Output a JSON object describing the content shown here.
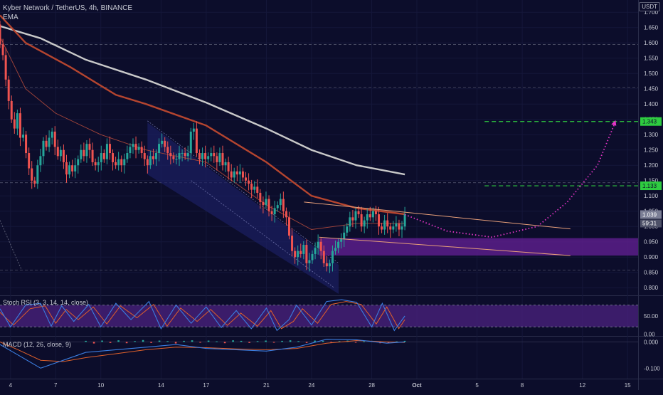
{
  "header": {
    "symbol": "Kyber Network / TetherUS, 4h, BINANCE",
    "indicator": "EMA",
    "currency": "USDT"
  },
  "colors": {
    "background": "#0c0d2b",
    "up_candle": "#26a69a",
    "down_candle": "#ef5350",
    "ema_slow": "#c9c9c9",
    "ema_mid": "#b5452f",
    "ema_fast": "#a4453a",
    "channel_fill": "#1b1f63",
    "support_zone": "#5a1e8a",
    "target_line": "#2ecc40",
    "projection": "#e535c8",
    "trendline": "#e8a07a",
    "stoch_k": "#3b7de0",
    "stoch_d": "#e0602a",
    "stoch_band": "#4b2180"
  },
  "chart_data": [
    {
      "type": "line",
      "pane": "price",
      "title": "Kyber Network / TetherUS, 4h, BINANCE",
      "x_tick_labels": [
        "4",
        "7",
        "10",
        "14",
        "17",
        "21",
        "24",
        "28",
        "Oct",
        "5",
        "8",
        "12",
        "15"
      ],
      "x_tick_days": [
        4,
        7,
        10,
        14,
        17,
        21,
        24,
        28,
        31,
        35,
        38,
        42,
        45
      ],
      "y_ticks": [
        1.7,
        1.65,
        1.6,
        1.55,
        1.5,
        1.45,
        1.4,
        1.35,
        1.3,
        1.25,
        1.2,
        1.15,
        1.1,
        1.05,
        1.0,
        0.95,
        0.9,
        0.85,
        0.8
      ],
      "y_tick_labels": [
        "1.700",
        "1.650",
        "1.600",
        "1.550",
        "1.500",
        "1.450",
        "1.400",
        "1.350",
        "1.300",
        "1.250",
        "1.200",
        "1.150",
        "1.100",
        "1.050",
        "1.000",
        "0.950",
        "0.900",
        "0.850",
        "0.800"
      ],
      "ylim": [
        0.775,
        1.74
      ],
      "xlim": [
        3.3,
        45.7
      ],
      "grid": true,
      "candle_closes": [
        1.595,
        1.56,
        1.48,
        1.41,
        1.35,
        1.32,
        1.37,
        1.29,
        1.3,
        1.24,
        1.19,
        1.15,
        1.14,
        1.2,
        1.23,
        1.28,
        1.26,
        1.29,
        1.31,
        1.26,
        1.23,
        1.25,
        1.21,
        1.17,
        1.2,
        1.18,
        1.2,
        1.22,
        1.25,
        1.23,
        1.27,
        1.25,
        1.21,
        1.2,
        1.21,
        1.24,
        1.22,
        1.27,
        1.24,
        1.21,
        1.2,
        1.22,
        1.2,
        1.22,
        1.24,
        1.26,
        1.27,
        1.25,
        1.26,
        1.24,
        1.22,
        1.2,
        1.23,
        1.22,
        1.24,
        1.27,
        1.28,
        1.26,
        1.24,
        1.23,
        1.22,
        1.22,
        1.24,
        1.24,
        1.23,
        1.24,
        1.31,
        1.32,
        1.24,
        1.22,
        1.24,
        1.22,
        1.23,
        1.24,
        1.23,
        1.21,
        1.24,
        1.2,
        1.21,
        1.18,
        1.16,
        1.18,
        1.17,
        1.18,
        1.16,
        1.15,
        1.14,
        1.12,
        1.13,
        1.11,
        1.08,
        1.07,
        1.09,
        1.05,
        1.04,
        1.06,
        1.07,
        1.09,
        1.05,
        1.03,
        0.97,
        0.92,
        0.9,
        0.92,
        0.91,
        0.94,
        0.88,
        0.89,
        0.91,
        0.93,
        0.95,
        0.92,
        0.88,
        0.87,
        0.88,
        0.92,
        0.93,
        0.95,
        0.96,
        0.98,
        1.0,
        1.03,
        1.02,
        1.05,
        1.04,
        1.0,
        1.02,
        1.04,
        1.03,
        1.05,
        1.04,
        1.0,
        0.99,
        1.02,
        1.0,
        0.99,
        1.0,
        1.01,
        0.99,
        1.0,
        1.04
      ],
      "series": [
        {
          "name": "",
          "x": [
            3.3,
            6,
            9,
            13,
            17,
            21,
            24,
            27,
            30.2
          ],
          "y": [
            1.655,
            1.615,
            1.545,
            1.48,
            1.405,
            1.32,
            1.25,
            1.2,
            1.17
          ]
        },
        {
          "name": "",
          "x": [
            3.3,
            5,
            8,
            11,
            13,
            17,
            21,
            24,
            27,
            30.2
          ],
          "y": [
            1.69,
            1.6,
            1.52,
            1.43,
            1.4,
            1.33,
            1.21,
            1.1,
            1.06,
            1.04
          ]
        },
        {
          "name": "",
          "x": [
            3.3,
            5,
            7,
            10,
            13,
            17,
            21,
            24,
            27,
            30.2
          ],
          "y": [
            1.62,
            1.45,
            1.37,
            1.3,
            1.25,
            1.21,
            1.07,
            0.99,
            1.01,
            1.01
          ]
        }
      ],
      "annotations": {
        "target_upper": 1.343,
        "target_lower": 1.133,
        "current_price": 1.039,
        "support_zone": [
          0.905,
          0.962
        ],
        "projected_path": {
          "x": [
            30.2,
            33,
            36,
            39,
            41,
            43,
            44.2
          ],
          "y": [
            1.039,
            0.985,
            0.965,
            1.0,
            1.08,
            1.2,
            1.343
          ]
        },
        "resistance_trendline": {
          "x": [
            23.5,
            41.2
          ],
          "y": [
            1.08,
            0.992
          ]
        },
        "support_trendline": {
          "x": [
            24.5,
            41.2
          ],
          "y": [
            0.965,
            0.905
          ]
        }
      },
      "price_labels": [
        "1.343",
        "1.133",
        "1.039",
        "59:31"
      ]
    },
    {
      "type": "line",
      "pane": "stoch_rsi",
      "title": "Stoch RSI (3, 3, 14, 14, close)",
      "y_ticks": [
        50,
        0
      ],
      "y_tick_labels": [
        "50.00",
        "0.00"
      ],
      "ylim": [
        -5,
        105
      ],
      "band": [
        20,
        80
      ],
      "series": [
        {
          "name": "",
          "x": [
            3.3,
            4,
            5,
            6,
            6.7,
            7.4,
            8.2,
            9.2,
            10,
            11,
            12,
            13.2,
            14,
            15,
            16,
            17,
            18,
            19,
            20,
            21,
            21.7,
            22.5,
            23,
            24,
            25,
            26,
            27,
            28,
            28.7,
            29.5,
            30.2
          ],
          "y": [
            70,
            20,
            80,
            85,
            22,
            78,
            35,
            82,
            20,
            85,
            40,
            90,
            15,
            80,
            30,
            75,
            18,
            65,
            15,
            72,
            10,
            40,
            80,
            25,
            90,
            95,
            88,
            20,
            85,
            10,
            50
          ]
        },
        {
          "name": "",
          "x": [
            3.3,
            4.2,
            5.3,
            6.3,
            7,
            7.7,
            8.5,
            9.5,
            10.4,
            11.3,
            12.4,
            13.5,
            14.4,
            15.3,
            16.4,
            17.3,
            18.4,
            19.3,
            20.4,
            21.3,
            22,
            22.8,
            23.4,
            24.4,
            25.3,
            26.3,
            27.3,
            28.3,
            29,
            29.8,
            30.2
          ],
          "y": [
            60,
            25,
            70,
            78,
            30,
            68,
            40,
            75,
            28,
            78,
            45,
            82,
            22,
            72,
            35,
            68,
            24,
            58,
            22,
            65,
            15,
            35,
            70,
            30,
            82,
            90,
            82,
            28,
            75,
            15,
            40
          ]
        }
      ]
    },
    {
      "type": "bar",
      "pane": "macd",
      "title": "MACD (12, 26, close, 9)",
      "y_ticks": [
        0.0,
        -0.1
      ],
      "y_tick_labels": [
        "0.000",
        "-0.100"
      ],
      "ylim": [
        -0.14,
        0.02
      ],
      "series": [
        {
          "name": "",
          "x": [
            3.3,
            4.5,
            6,
            7.5,
            9,
            11,
            13,
            15,
            17,
            19,
            21,
            23,
            25,
            27,
            29,
            30.2
          ],
          "y": [
            -0.01,
            -0.05,
            -0.1,
            -0.07,
            -0.04,
            -0.03,
            -0.02,
            -0.01,
            -0.025,
            -0.03,
            -0.035,
            -0.02,
            0.01,
            0.008,
            -0.005,
            0.0
          ]
        },
        {
          "name": "",
          "x": [
            3.3,
            4.5,
            6,
            7.5,
            9,
            11,
            13,
            15,
            17,
            19,
            21,
            23,
            25,
            27,
            29,
            30.2
          ],
          "y": [
            0.0,
            -0.03,
            -0.07,
            -0.075,
            -0.06,
            -0.045,
            -0.03,
            -0.02,
            -0.022,
            -0.027,
            -0.03,
            -0.025,
            -0.005,
            0.005,
            0.0,
            -0.002
          ]
        }
      ],
      "histogram": [
        0.004,
        -0.006,
        0.005,
        -0.004,
        0.006,
        -0.005,
        0.003,
        0.007,
        -0.004,
        0.005,
        0.003,
        -0.006,
        0.004,
        0.006,
        -0.003,
        0.005,
        0.002,
        -0.005,
        0.006,
        0.004,
        -0.004,
        0.003,
        0.005,
        -0.003,
        0.004,
        0.006,
        0.003,
        -0.004,
        0.005,
        0.004,
        -0.002,
        0.003,
        0.005,
        -0.003,
        0.002,
        0.004,
        -0.005,
        -0.003,
        0.002,
        0.004
      ]
    }
  ]
}
